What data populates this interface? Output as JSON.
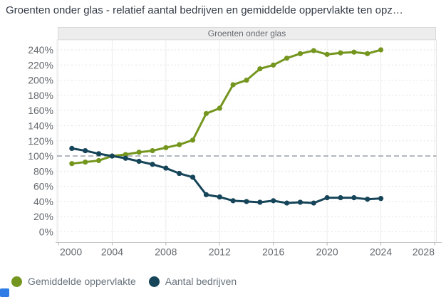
{
  "title": "Groenten onder glas - relatief aantal bedrijven en gemiddelde oppervlakte ten opz…",
  "panel_title": "Groenten onder glas",
  "legend": {
    "items": [
      {
        "label": "Gemiddelde oppervlakte",
        "color": "#74961E"
      },
      {
        "label": "Aantal bedrijven",
        "color": "#16455A"
      }
    ]
  },
  "chart_data": {
    "type": "line",
    "title": "Groenten onder glas",
    "x": [
      2001,
      2002,
      2003,
      2004,
      2005,
      2006,
      2007,
      2008,
      2009,
      2010,
      2011,
      2012,
      2013,
      2014,
      2015,
      2016,
      2017,
      2018,
      2019,
      2020,
      2021,
      2022,
      2023,
      2024
    ],
    "series": [
      {
        "name": "Gemiddelde oppervlakte",
        "color": "#74961E",
        "values": [
          90,
          92,
          94,
          100,
          102,
          105,
          107,
          111,
          115,
          121,
          156,
          163,
          194,
          200,
          215,
          220,
          229,
          235,
          239,
          234,
          236,
          237,
          235,
          240
        ]
      },
      {
        "name": "Aantal bedrijven",
        "color": "#16455A",
        "values": [
          110,
          107,
          103,
          100,
          97,
          93,
          89,
          84,
          77,
          72,
          49,
          46,
          41,
          40,
          39,
          41,
          38,
          39,
          38,
          45,
          45,
          45,
          43,
          44
        ]
      }
    ],
    "xlim": [
      2000,
      2028
    ],
    "ylim": [
      0,
      240
    ],
    "x_ticks": [
      2000,
      2004,
      2008,
      2012,
      2016,
      2020,
      2024,
      2028
    ],
    "y_ticks": [
      0,
      20,
      40,
      60,
      80,
      100,
      120,
      140,
      160,
      180,
      200,
      220,
      240
    ],
    "y_tick_suffix": "%",
    "reference_line": 100,
    "grid": true,
    "legend_position": "bottom",
    "colors": {
      "grid": "#e3e3e3",
      "reference": "#9aa0a6",
      "axis_line": "#c6c6c6",
      "tick": "#b3b3b3",
      "axis_text": "#64696e"
    }
  }
}
